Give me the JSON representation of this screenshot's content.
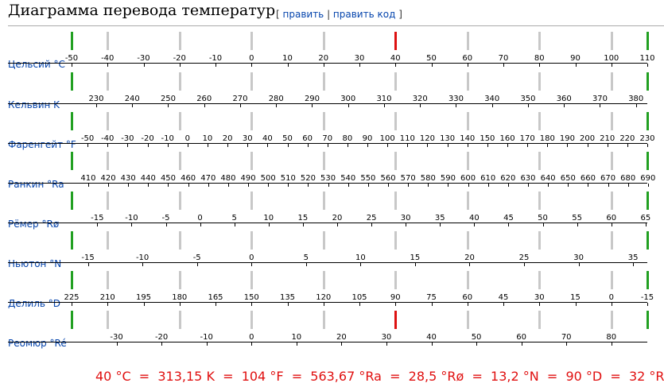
{
  "header": {
    "title": "Диаграмма перевода температур",
    "edit_link": "править",
    "edit_code_link": "править код"
  },
  "colors": {
    "label_blue": "#0645ad",
    "marker_green": "#22a022",
    "marker_red": "#dd1111",
    "marker_grey": "#c8c8c8",
    "summary_red": "#e01010"
  },
  "scales": [
    {
      "name": "Цельсий °C",
      "ticks": [
        "-50",
        "-40",
        "-30",
        "-20",
        "-10",
        "0",
        "10",
        "20",
        "30",
        "40",
        "50",
        "60",
        "70",
        "80",
        "90",
        "100",
        "110"
      ]
    },
    {
      "name": "Кельвин K",
      "ticks": [
        "230",
        "240",
        "250",
        "260",
        "270",
        "280",
        "290",
        "300",
        "310",
        "320",
        "330",
        "340",
        "350",
        "360",
        "370",
        "380"
      ]
    },
    {
      "name": "Фаренгейт °F",
      "ticks": [
        "-50",
        "-40",
        "-30",
        "-20",
        "-10",
        "0",
        "10",
        "20",
        "30",
        "40",
        "50",
        "60",
        "70",
        "80",
        "90",
        "100",
        "110",
        "120",
        "130",
        "140",
        "150",
        "160",
        "170",
        "180",
        "190",
        "200",
        "210",
        "220",
        "230"
      ]
    },
    {
      "name": "Ранкин °Ra",
      "ticks": [
        "410",
        "420",
        "430",
        "440",
        "450",
        "460",
        "470",
        "480",
        "490",
        "500",
        "510",
        "520",
        "530",
        "540",
        "550",
        "560",
        "570",
        "580",
        "590",
        "600",
        "610",
        "620",
        "630",
        "640",
        "650",
        "660",
        "670",
        "680",
        "690"
      ]
    },
    {
      "name": "Рёмер °Rø",
      "ticks": [
        "-15",
        "-10",
        "-5",
        "0",
        "5",
        "10",
        "15",
        "20",
        "25",
        "30",
        "35",
        "40",
        "45",
        "50",
        "55",
        "60",
        "65"
      ]
    },
    {
      "name": "Ньютон °N",
      "ticks": [
        "-15",
        "-10",
        "-5",
        "0",
        "5",
        "10",
        "15",
        "20",
        "25",
        "30",
        "35"
      ]
    },
    {
      "name": "Делиль °D",
      "ticks": [
        "225",
        "210",
        "195",
        "180",
        "165",
        "150",
        "135",
        "120",
        "105",
        "90",
        "75",
        "60",
        "45",
        "30",
        "15",
        "0",
        "-15"
      ]
    },
    {
      "name": "Реомюр °Ré",
      "ticks": [
        "-30",
        "-20",
        "-10",
        "0",
        "10",
        "20",
        "30",
        "40",
        "50",
        "60",
        "70",
        "80"
      ]
    }
  ],
  "summary": {
    "c": "40 °C",
    "k": "313,15 K",
    "f": "104 °F",
    "ra": "563,67 °Ra",
    "ro": "28,5 °Rø",
    "n": "13,2 °N",
    "d": "90 °D",
    "r": "32 °R",
    "eq": "="
  }
}
